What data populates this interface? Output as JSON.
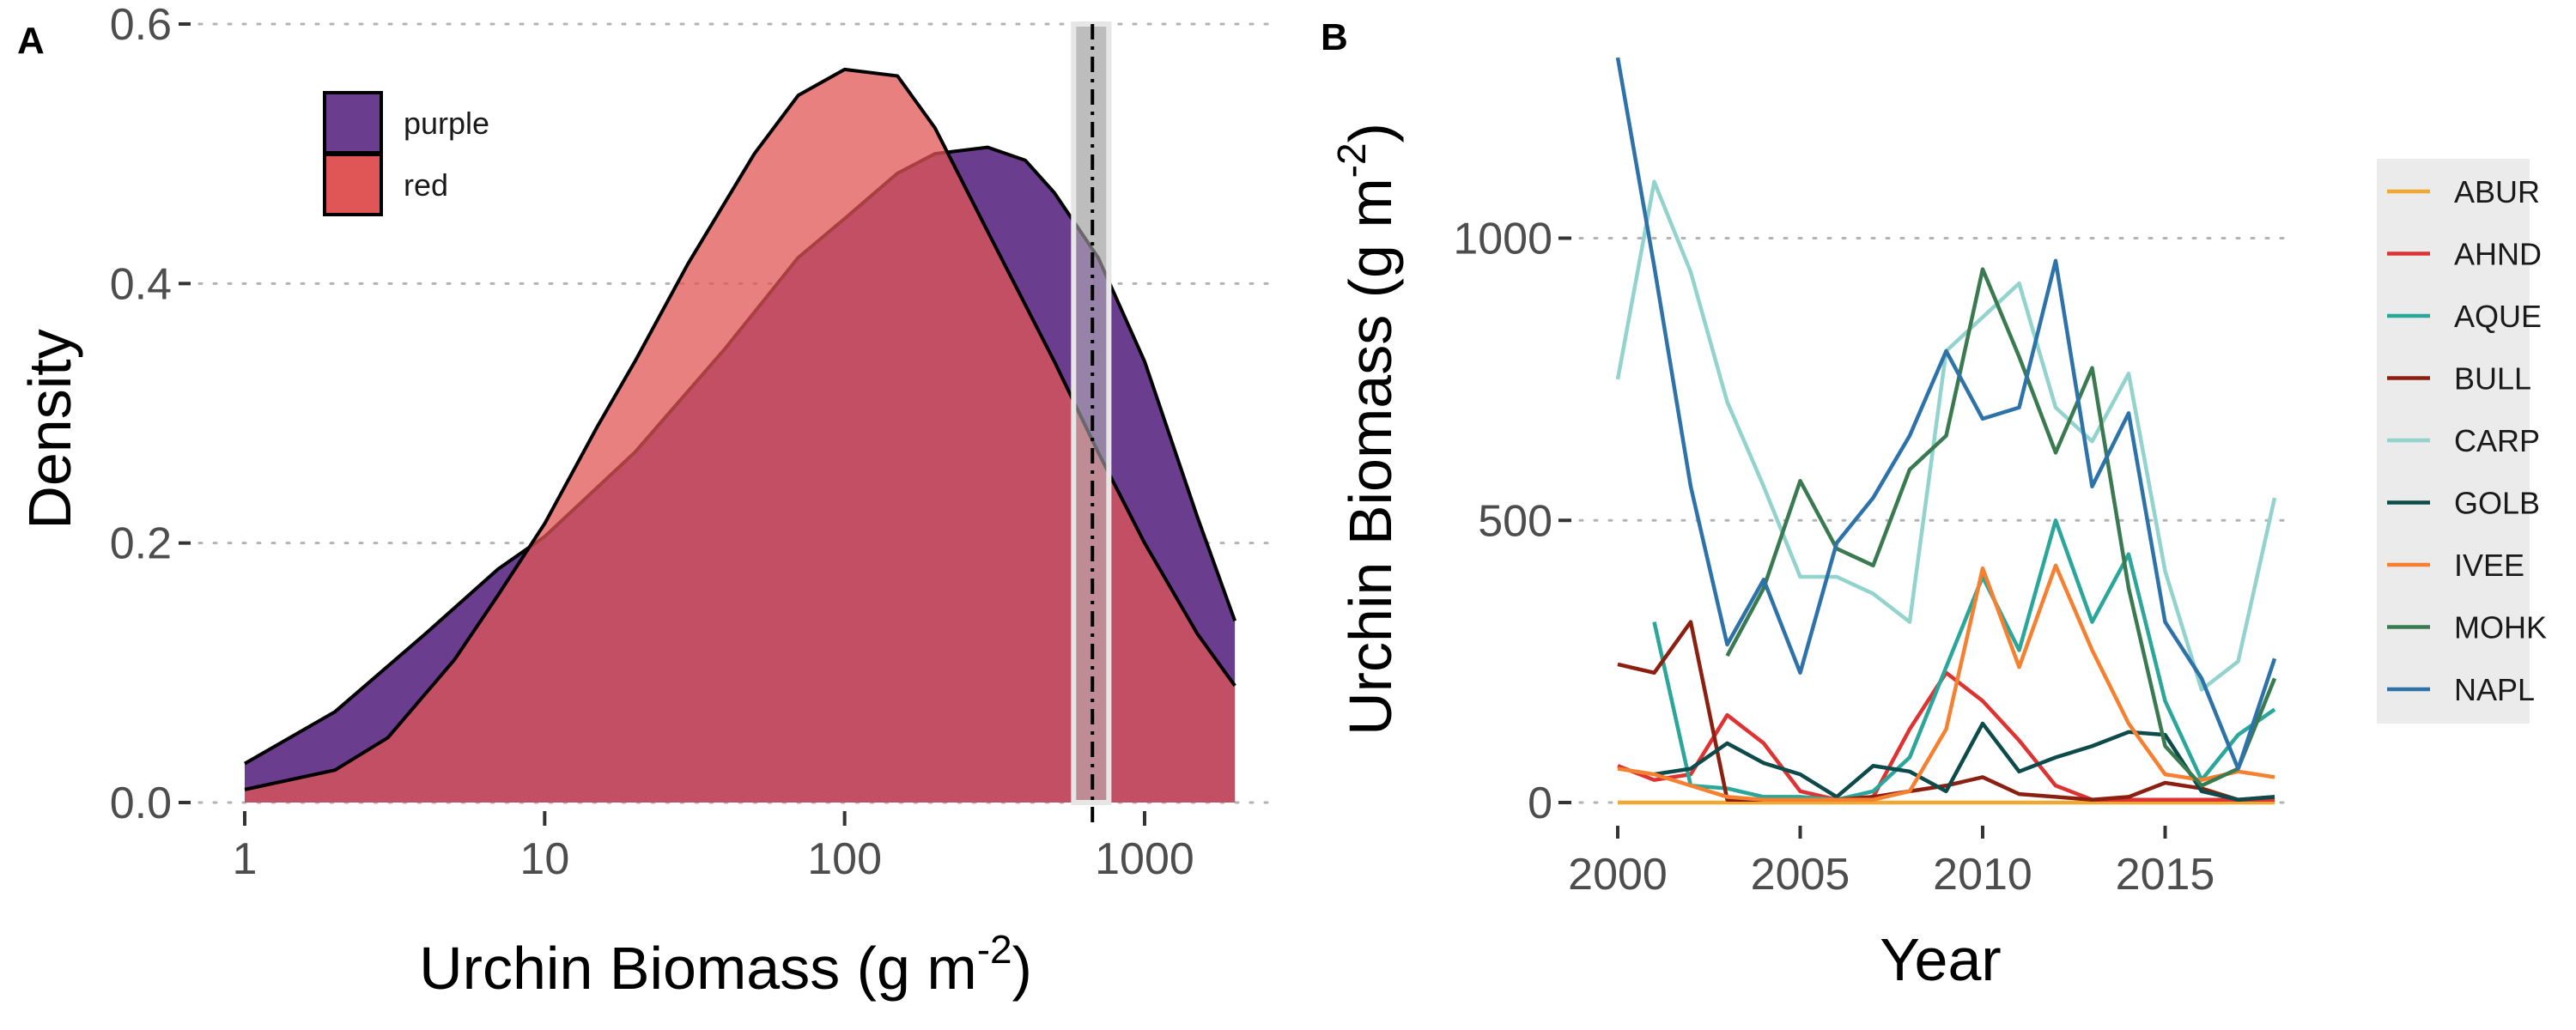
{
  "panels": {
    "a": {
      "tag": "A",
      "xlabel_main": "Urchin Biomass (g m",
      "xlabel_sup": "-2",
      "xlabel_close": ")",
      "ylabel": "Density",
      "x_ticks": [
        "1",
        "10",
        "100",
        "1000"
      ],
      "y_ticks": [
        "0.0",
        "0.2",
        "0.4",
        "0.6"
      ],
      "legend": [
        {
          "label": "purple",
          "color": "#6a3d8f"
        },
        {
          "label": "red",
          "color": "#e05555"
        }
      ]
    },
    "b": {
      "tag": "B",
      "xlabel": "Year",
      "ylabel_main": "Urchin Biomass (g m",
      "ylabel_sup": "-2",
      "ylabel_close": ")",
      "x_ticks": [
        "2000",
        "2005",
        "2010",
        "2015"
      ],
      "y_ticks": [
        "0",
        "500",
        "1000"
      ],
      "legend": [
        "ABUR",
        "AHND",
        "AQUE",
        "BULL",
        "CARP",
        "GOLB",
        "IVEE",
        "MOHK",
        "NAPL"
      ]
    }
  },
  "chart_data": [
    {
      "type": "area",
      "x_scale": "log10",
      "xlim": [
        1,
        2000
      ],
      "ylim": [
        0,
        0.6
      ],
      "grid": "horizontal",
      "legend_position": "top-left",
      "series": [
        {
          "name": "purple",
          "color": "#6a3d8f",
          "x": [
            1,
            2,
            4,
            7,
            10,
            20,
            40,
            70,
            100,
            150,
            200,
            300,
            400,
            500,
            700,
            1000,
            1500,
            2000
          ],
          "y": [
            0.03,
            0.07,
            0.13,
            0.18,
            0.205,
            0.27,
            0.35,
            0.42,
            0.45,
            0.485,
            0.5,
            0.505,
            0.495,
            0.47,
            0.42,
            0.34,
            0.22,
            0.14
          ]
        },
        {
          "name": "red",
          "color": "#e05555",
          "x": [
            1,
            2,
            3,
            5,
            7,
            10,
            15,
            20,
            30,
            50,
            70,
            100,
            150,
            200,
            300,
            500,
            700,
            1000,
            1500,
            2000
          ],
          "y": [
            0.01,
            0.025,
            0.05,
            0.11,
            0.16,
            0.215,
            0.29,
            0.34,
            0.415,
            0.5,
            0.545,
            0.565,
            0.56,
            0.52,
            0.44,
            0.34,
            0.27,
            0.2,
            0.13,
            0.09
          ]
        }
      ],
      "reference_line": {
        "x": 670,
        "band": [
          580,
          760
        ],
        "style": "dashed"
      }
    },
    {
      "type": "line",
      "xlim": [
        2000,
        2018
      ],
      "ylim": [
        0,
        1350
      ],
      "grid": "horizontal",
      "legend_position": "right",
      "x": [
        2000,
        2001,
        2002,
        2003,
        2004,
        2005,
        2006,
        2007,
        2008,
        2009,
        2010,
        2011,
        2012,
        2013,
        2014,
        2015,
        2016,
        2017,
        2018
      ],
      "series": [
        {
          "name": "ABUR",
          "color": "#f0a830",
          "values": [
            0,
            0,
            0,
            0,
            0,
            0,
            0,
            0,
            0,
            0,
            0,
            0,
            0,
            0,
            0,
            0,
            0,
            0,
            0
          ]
        },
        {
          "name": "AHND",
          "color": "#dd3333",
          "values": [
            65,
            40,
            50,
            155,
            105,
            20,
            5,
            10,
            130,
            230,
            180,
            110,
            30,
            5,
            5,
            5,
            5,
            5,
            5
          ]
        },
        {
          "name": "AQUE",
          "color": "#2aa69a",
          "values": [
            null,
            320,
            30,
            25,
            10,
            10,
            5,
            20,
            80,
            240,
            400,
            270,
            500,
            320,
            440,
            180,
            40,
            120,
            165
          ]
        },
        {
          "name": "BULL",
          "color": "#8b2010",
          "values": [
            245,
            230,
            320,
            5,
            5,
            5,
            5,
            10,
            20,
            30,
            45,
            15,
            10,
            5,
            10,
            35,
            25,
            5,
            10
          ]
        },
        {
          "name": "CARP",
          "color": "#92d3cd",
          "values": [
            750,
            1100,
            940,
            710,
            560,
            400,
            400,
            370,
            320,
            800,
            860,
            920,
            700,
            640,
            760,
            410,
            200,
            250,
            540
          ]
        },
        {
          "name": "GOLB",
          "color": "#0d4a4a",
          "values": [
            null,
            50,
            60,
            105,
            70,
            50,
            10,
            65,
            55,
            20,
            140,
            55,
            80,
            100,
            125,
            120,
            20,
            5,
            10
          ]
        },
        {
          "name": "IVEE",
          "color": "#f58030",
          "values": [
            60,
            50,
            30,
            10,
            5,
            5,
            5,
            5,
            20,
            130,
            415,
            240,
            420,
            270,
            140,
            50,
            40,
            55,
            45
          ]
        },
        {
          "name": "MOHK",
          "color": "#3a7a50",
          "values": [
            null,
            null,
            null,
            260,
            380,
            570,
            450,
            420,
            590,
            650,
            945,
            790,
            620,
            770,
            380,
            100,
            30,
            60,
            220
          ]
        },
        {
          "name": "NAPL",
          "color": "#2d72a8",
          "values": [
            1320,
            950,
            560,
            280,
            395,
            230,
            460,
            540,
            650,
            800,
            680,
            700,
            960,
            560,
            690,
            320,
            220,
            60,
            255
          ]
        }
      ]
    }
  ]
}
